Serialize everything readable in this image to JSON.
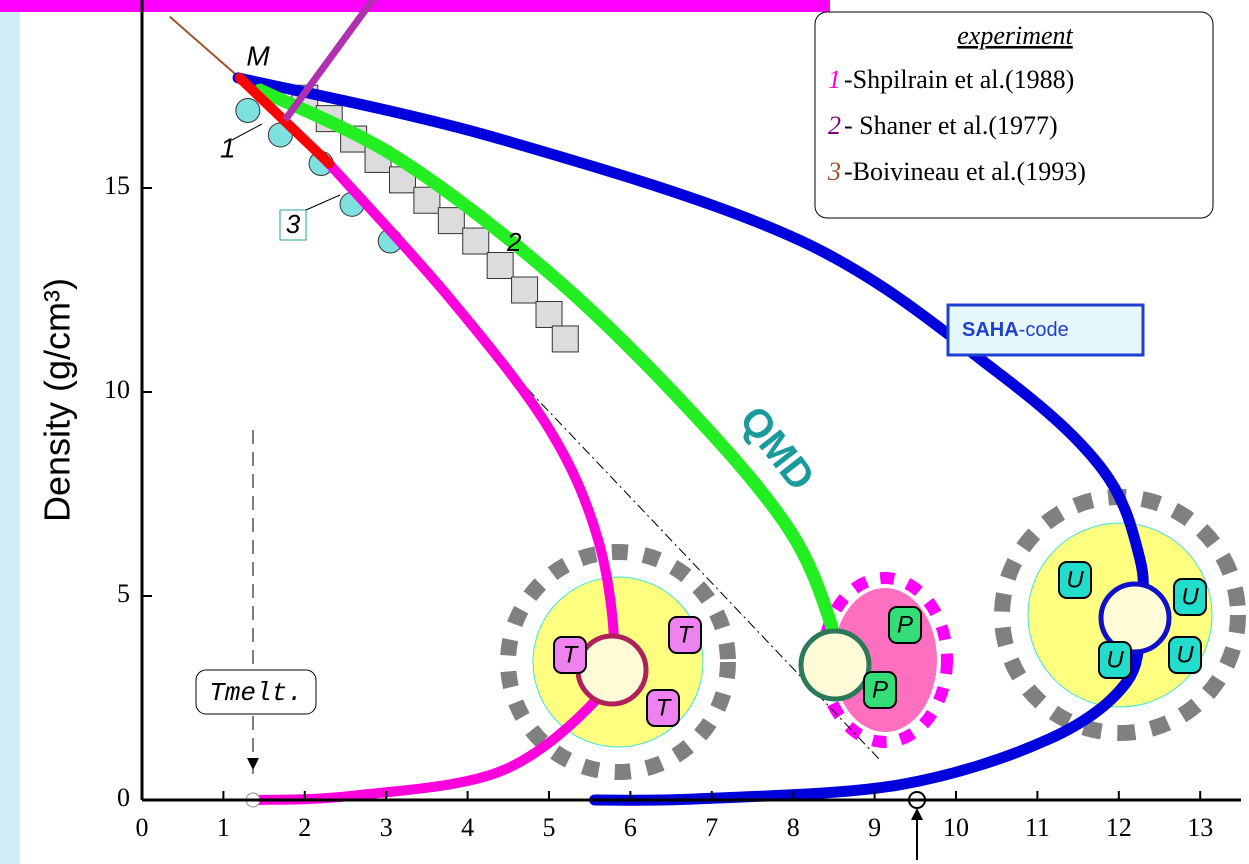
{
  "chart_data": {
    "type": "line",
    "y_label": "Density (g/cm³)",
    "xlim": [
      0,
      13.5
    ],
    "ylim": [
      0,
      19.5
    ],
    "xticks": [
      0,
      1,
      2,
      3,
      4,
      5,
      6,
      7,
      8,
      9,
      10,
      11,
      12,
      13
    ],
    "yticks": [
      0,
      5,
      10,
      15
    ],
    "series": [
      {
        "color": "#0000dd",
        "width": 11,
        "label": [
          "SAHA",
          "-code"
        ],
        "x": [
          1.18,
          4.4,
          8.1,
          10.5,
          11.8,
          12.26,
          12.26,
          12.1,
          11.15,
          9.3,
          6.85,
          5.56
        ],
        "y": [
          17.7,
          16.2,
          13.7,
          10.5,
          8.1,
          5.9,
          4.5,
          2.9,
          1.5,
          0.37,
          0.03,
          0
        ]
      },
      {
        "color": "#22ee22",
        "width": 13,
        "label": "QMD",
        "x": [
          1.45,
          3.17,
          5.13,
          6.85,
          7.96,
          8.45,
          8.5
        ],
        "y": [
          17.4,
          15.7,
          12.7,
          9.3,
          6.6,
          4.4,
          3.4
        ]
      },
      {
        "color": "#ff00dd",
        "width": 10,
        "x": [
          2.25,
          3.78,
          5.0,
          5.6,
          5.8,
          5.6,
          4.4,
          2.56,
          1.39
        ],
        "y": [
          15.7,
          12.3,
          9.1,
          6.4,
          3.7,
          2.5,
          0.7,
          0.1,
          0
        ]
      },
      {
        "color": "#ff0000",
        "width": 10,
        "x": [
          1.2,
          2.3
        ],
        "y": [
          17.7,
          15.6
        ]
      }
    ],
    "experiment_points": [
      {
        "marker": "circle",
        "color": "#7fe0e0",
        "x": [
          1.3,
          1.7,
          2.2,
          2.58,
          3.05
        ],
        "y": [
          16.9,
          16.3,
          15.6,
          14.6,
          13.7
        ]
      },
      {
        "marker": "square",
        "color": "#dcdcdc",
        "x": [
          2.0,
          2.3,
          2.6,
          2.9,
          3.2,
          3.5,
          3.8,
          4.1,
          4.4,
          4.7,
          5.0,
          5.2
        ],
        "y": [
          17.2,
          16.7,
          16.2,
          15.7,
          15.2,
          14.7,
          14.2,
          13.7,
          13.1,
          12.5,
          11.9,
          11.3
        ]
      },
      {
        "marker": "line",
        "color": "#a0522d",
        "x": [
          0.34,
          1.2
        ],
        "y": [
          19.2,
          17.7
        ]
      }
    ],
    "legend": {
      "title": "experiment",
      "entries": [
        {
          "number": "1",
          "color": "#ff00dd",
          "text": "-Shpilrain et al.(1988)"
        },
        {
          "number": "2",
          "color": "#800080",
          "text": "- Shaner et al.(1977)"
        },
        {
          "number": "3",
          "color": "#a0522d",
          "text": "-Boivineau et al.(1993)"
        }
      ]
    },
    "annotations": {
      "M": "M",
      "n1": "1",
      "n2": "2",
      "n3": "3",
      "t_melt": "Tmelt.",
      "T": [
        "T",
        "T",
        "T"
      ],
      "P": [
        "P",
        "P"
      ],
      "U": [
        "U",
        "U",
        "U",
        "U"
      ]
    }
  }
}
